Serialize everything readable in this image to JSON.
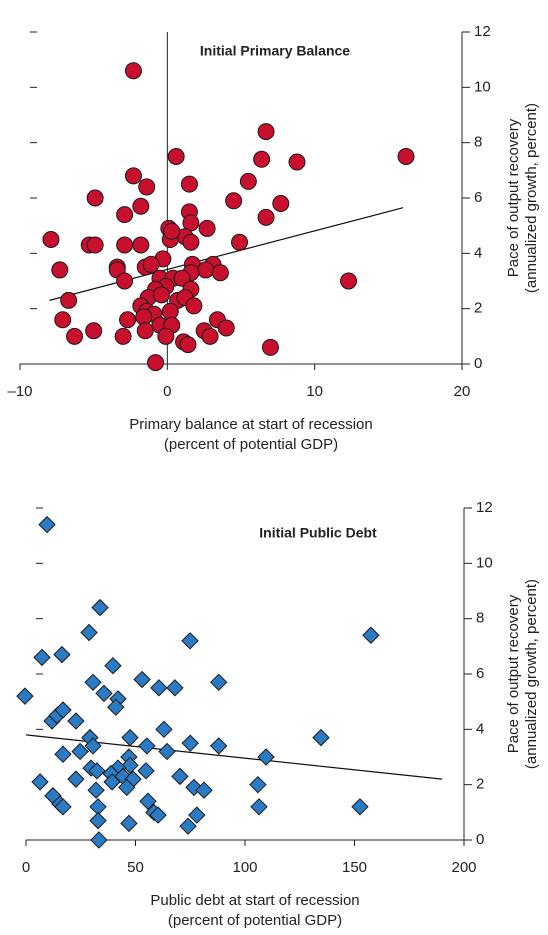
{
  "chart_data": [
    {
      "type": "scatter",
      "title": "Initial Primary Balance",
      "xlabel": [
        "Primary balance at start of recession",
        "(percent of potential GDP)"
      ],
      "ylabel": [
        "Pace of output recovery",
        "(annualized growth, percent)"
      ],
      "color": "#c8102e",
      "marker": "circle",
      "zero_line": true,
      "x": [
        -2.3,
        6.7,
        0.6,
        16.2,
        6.4,
        8.8,
        -2.3,
        -1.4,
        1.5,
        5.5,
        -4.9,
        -1.8,
        7.7,
        4.5,
        -2.9,
        6.7,
        1.5,
        1.6,
        0.1,
        2.7,
        1.2,
        0.2,
        0.3,
        -7.9,
        -5.3,
        -4.9,
        -2.9,
        -1.8,
        1.6,
        4.9,
        -0.3,
        3.1,
        1.7,
        -1.5,
        -3.4,
        -3.4,
        -7.3,
        -1.1,
        2.6,
        3.6,
        1.6,
        -0.5,
        0.4,
        1.0,
        -2.9,
        12.3,
        -0.1,
        -0.8,
        1.6,
        -6.7,
        -1.3,
        0.7,
        1.2,
        -0.4,
        -1.8,
        1.8,
        -1.4,
        -0.9,
        0.2,
        -1.6,
        3.4,
        -2.7,
        -7.1,
        -0.5,
        0.3,
        -1.5,
        -5.0,
        2.5,
        4.0,
        2.9,
        -6.3,
        -3.0,
        -0.1,
        1.1,
        1.4,
        7.0,
        -0.8
      ],
      "values": [
        10.6,
        8.4,
        7.5,
        7.5,
        7.4,
        7.3,
        6.8,
        6.4,
        6.5,
        6.6,
        6.0,
        5.7,
        5.8,
        5.9,
        5.4,
        5.3,
        5.5,
        5.1,
        4.9,
        4.9,
        4.6,
        4.5,
        4.8,
        4.5,
        4.3,
        4.3,
        4.3,
        4.3,
        4.4,
        4.4,
        3.8,
        3.6,
        3.6,
        3.5,
        3.5,
        3.4,
        3.4,
        3.6,
        3.4,
        3.3,
        3.3,
        3.1,
        3.1,
        3.1,
        3.0,
        3.0,
        2.8,
        2.7,
        2.7,
        2.3,
        2.4,
        2.3,
        2.4,
        2.5,
        2.1,
        2.1,
        1.9,
        1.8,
        1.9,
        1.7,
        1.6,
        1.6,
        1.6,
        1.4,
        1.4,
        1.2,
        1.2,
        1.2,
        1.3,
        1.0,
        1.0,
        1.0,
        1.0,
        0.8,
        0.7,
        0.6,
        0.05
      ],
      "trendline": {
        "x": [
          -8,
          16
        ],
        "y": [
          2.3,
          5.65
        ]
      },
      "xlim": [
        -10,
        20
      ],
      "xticks": [
        {
          "value": -10,
          "label": "–10"
        },
        0,
        10,
        20
      ],
      "ylim": [
        0,
        12
      ],
      "yticks": [
        0,
        2,
        4,
        6,
        8,
        10,
        12
      ]
    },
    {
      "type": "scatter",
      "title": "Initial Public Debt",
      "xlabel": [
        "Public debt at start of recession",
        "(percent of potential GDP)"
      ],
      "ylabel": [
        "Pace of output recovery",
        "(annualized growth, percent)"
      ],
      "color": "#2a7bc4",
      "marker": "diamond",
      "zero_line": false,
      "x": [
        9.6,
        33.8,
        28.8,
        157.5,
        74.9,
        7.3,
        16.4,
        39.7,
        -0.5,
        88,
        30.6,
        53,
        60.7,
        68,
        35.6,
        42,
        41,
        11.9,
        14.2,
        16.9,
        22.8,
        63,
        134.7,
        29.2,
        30.6,
        47.5,
        55.2,
        75,
        88,
        64.4,
        24.7,
        16.9,
        47,
        109.6,
        47.5,
        29.7,
        42,
        32.4,
        54.8,
        38.8,
        44.3,
        70.3,
        48.9,
        22.8,
        6.4,
        39.3,
        105.9,
        46,
        76.7,
        81.3,
        32,
        12.3,
        55.7,
        15.5,
        16.9,
        32.9,
        106.4,
        152.5,
        58.4,
        60.3,
        78,
        32.9,
        47,
        74,
        33.3
      ],
      "values": [
        11.4,
        8.4,
        7.5,
        7.4,
        7.2,
        6.6,
        6.7,
        6.3,
        5.2,
        5.7,
        5.7,
        5.8,
        5.5,
        5.5,
        5.3,
        5.1,
        4.8,
        4.3,
        4.5,
        4.7,
        4.3,
        4.0,
        3.7,
        3.7,
        3.4,
        3.7,
        3.4,
        3.5,
        3.4,
        3.2,
        3.2,
        3.1,
        3.0,
        3.0,
        2.7,
        2.6,
        2.6,
        2.5,
        2.5,
        2.4,
        2.3,
        2.3,
        2.2,
        2.2,
        2.1,
        2.1,
        2.0,
        1.9,
        1.9,
        1.8,
        1.8,
        1.6,
        1.4,
        1.3,
        1.2,
        1.2,
        1.2,
        1.2,
        1.0,
        0.9,
        0.9,
        0.7,
        0.6,
        0.5,
        0.0
      ],
      "trendline": {
        "x": [
          0,
          190
        ],
        "y": [
          3.8,
          2.2
        ]
      },
      "xlim": [
        0,
        200
      ],
      "xticks": [
        0,
        50,
        100,
        150,
        200
      ],
      "ylim": [
        0,
        12
      ],
      "yticks": [
        0,
        2,
        4,
        6,
        8,
        10,
        12
      ]
    }
  ]
}
